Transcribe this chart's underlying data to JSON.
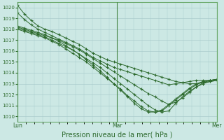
{
  "xlabel": "Pression niveau de la mer( hPa )",
  "bg_color": "#cce8e4",
  "grid_color": "#aacccc",
  "line_color": "#2d6a2d",
  "marker": "+",
  "ylim": [
    1009.5,
    1020.5
  ],
  "yticks": [
    1010,
    1011,
    1012,
    1013,
    1014,
    1015,
    1016,
    1017,
    1018,
    1019,
    1020
  ],
  "xlim": [
    0,
    48
  ],
  "xticks": [
    0,
    24,
    48
  ],
  "xticklabels": [
    "Lun",
    "Mar",
    "Mer"
  ],
  "series": [
    [
      1020.2,
      1019.4,
      1018.8,
      1018.3,
      1018.0,
      1017.8,
      1017.5,
      1017.2,
      1016.9,
      1016.6,
      1016.2,
      1015.8,
      1015.5,
      1015.2,
      1015.0,
      1014.8,
      1014.6,
      1014.4,
      1014.2,
      1014.0,
      1013.8,
      1013.6,
      1013.4,
      1013.2,
      1013.1,
      1013.0,
      1013.0,
      1013.1,
      1013.2,
      1013.3
    ],
    [
      1019.5,
      1018.9,
      1018.4,
      1018.0,
      1017.7,
      1017.4,
      1017.1,
      1016.8,
      1016.5,
      1016.2,
      1015.8,
      1015.4,
      1015.1,
      1014.8,
      1014.5,
      1014.3,
      1014.1,
      1013.9,
      1013.7,
      1013.5,
      1013.3,
      1013.1,
      1012.9,
      1013.0,
      1013.1,
      1013.2,
      1013.3,
      1013.3,
      1013.3,
      1013.4
    ],
    [
      1018.2,
      1018.0,
      1017.8,
      1017.6,
      1017.4,
      1017.2,
      1017.0,
      1016.7,
      1016.4,
      1016.1,
      1015.7,
      1015.3,
      1014.9,
      1014.5,
      1014.1,
      1013.7,
      1013.3,
      1012.9,
      1012.5,
      1012.1,
      1011.8,
      1011.4,
      1011.1,
      1011.3,
      1011.7,
      1012.2,
      1012.7,
      1013.1,
      1013.3,
      1013.4
    ],
    [
      1018.1,
      1017.9,
      1017.7,
      1017.5,
      1017.3,
      1017.0,
      1016.7,
      1016.4,
      1016.1,
      1015.7,
      1015.3,
      1014.9,
      1014.5,
      1014.0,
      1013.5,
      1013.0,
      1012.5,
      1012.0,
      1011.5,
      1011.0,
      1010.6,
      1010.4,
      1010.5,
      1011.2,
      1011.8,
      1012.3,
      1012.7,
      1013.0,
      1013.2,
      1013.3
    ],
    [
      1018.0,
      1017.8,
      1017.6,
      1017.4,
      1017.2,
      1016.9,
      1016.6,
      1016.2,
      1015.8,
      1015.4,
      1015.0,
      1014.5,
      1014.0,
      1013.5,
      1013.0,
      1012.5,
      1011.9,
      1011.4,
      1010.9,
      1010.5,
      1010.4,
      1010.5,
      1011.0,
      1011.5,
      1012.0,
      1012.5,
      1012.9,
      1013.2,
      1013.3,
      1013.4
    ],
    [
      1018.3,
      1018.1,
      1017.9,
      1017.7,
      1017.5,
      1017.2,
      1016.9,
      1016.5,
      1016.1,
      1015.7,
      1015.2,
      1014.7,
      1014.2,
      1013.6,
      1013.0,
      1012.4,
      1011.8,
      1011.2,
      1010.7,
      1010.4,
      1010.4,
      1010.6,
      1011.1,
      1011.6,
      1012.1,
      1012.6,
      1013.0,
      1013.2,
      1013.3,
      1013.4
    ]
  ]
}
